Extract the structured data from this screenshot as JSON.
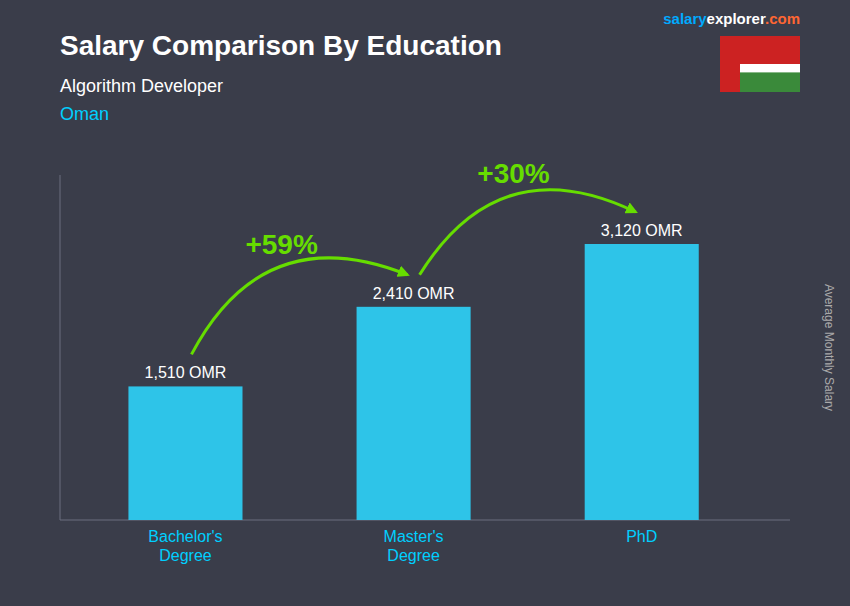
{
  "chart_data": {
    "type": "bar",
    "title": "Salary Comparison By Education",
    "subtitle": "Algorithm Developer",
    "annotations": [
      "Oman",
      "salary",
      "explorer",
      ".com",
      "+59%",
      "+30%"
    ],
    "categories": [
      "Bachelor's\nDegree",
      "Master's\nDegree",
      "PhD"
    ],
    "values": [
      1510,
      2410,
      3120
    ],
    "value_labels": [
      "1,510 OMR",
      "2,410 OMR",
      "3,120 OMR"
    ],
    "data_labels": true,
    "color": "#2ec4e8",
    "ylabel": "Average Monthly Salary",
    "ylim": [
      0,
      3900
    ],
    "tick_labels": "x",
    "grid": false
  }
}
